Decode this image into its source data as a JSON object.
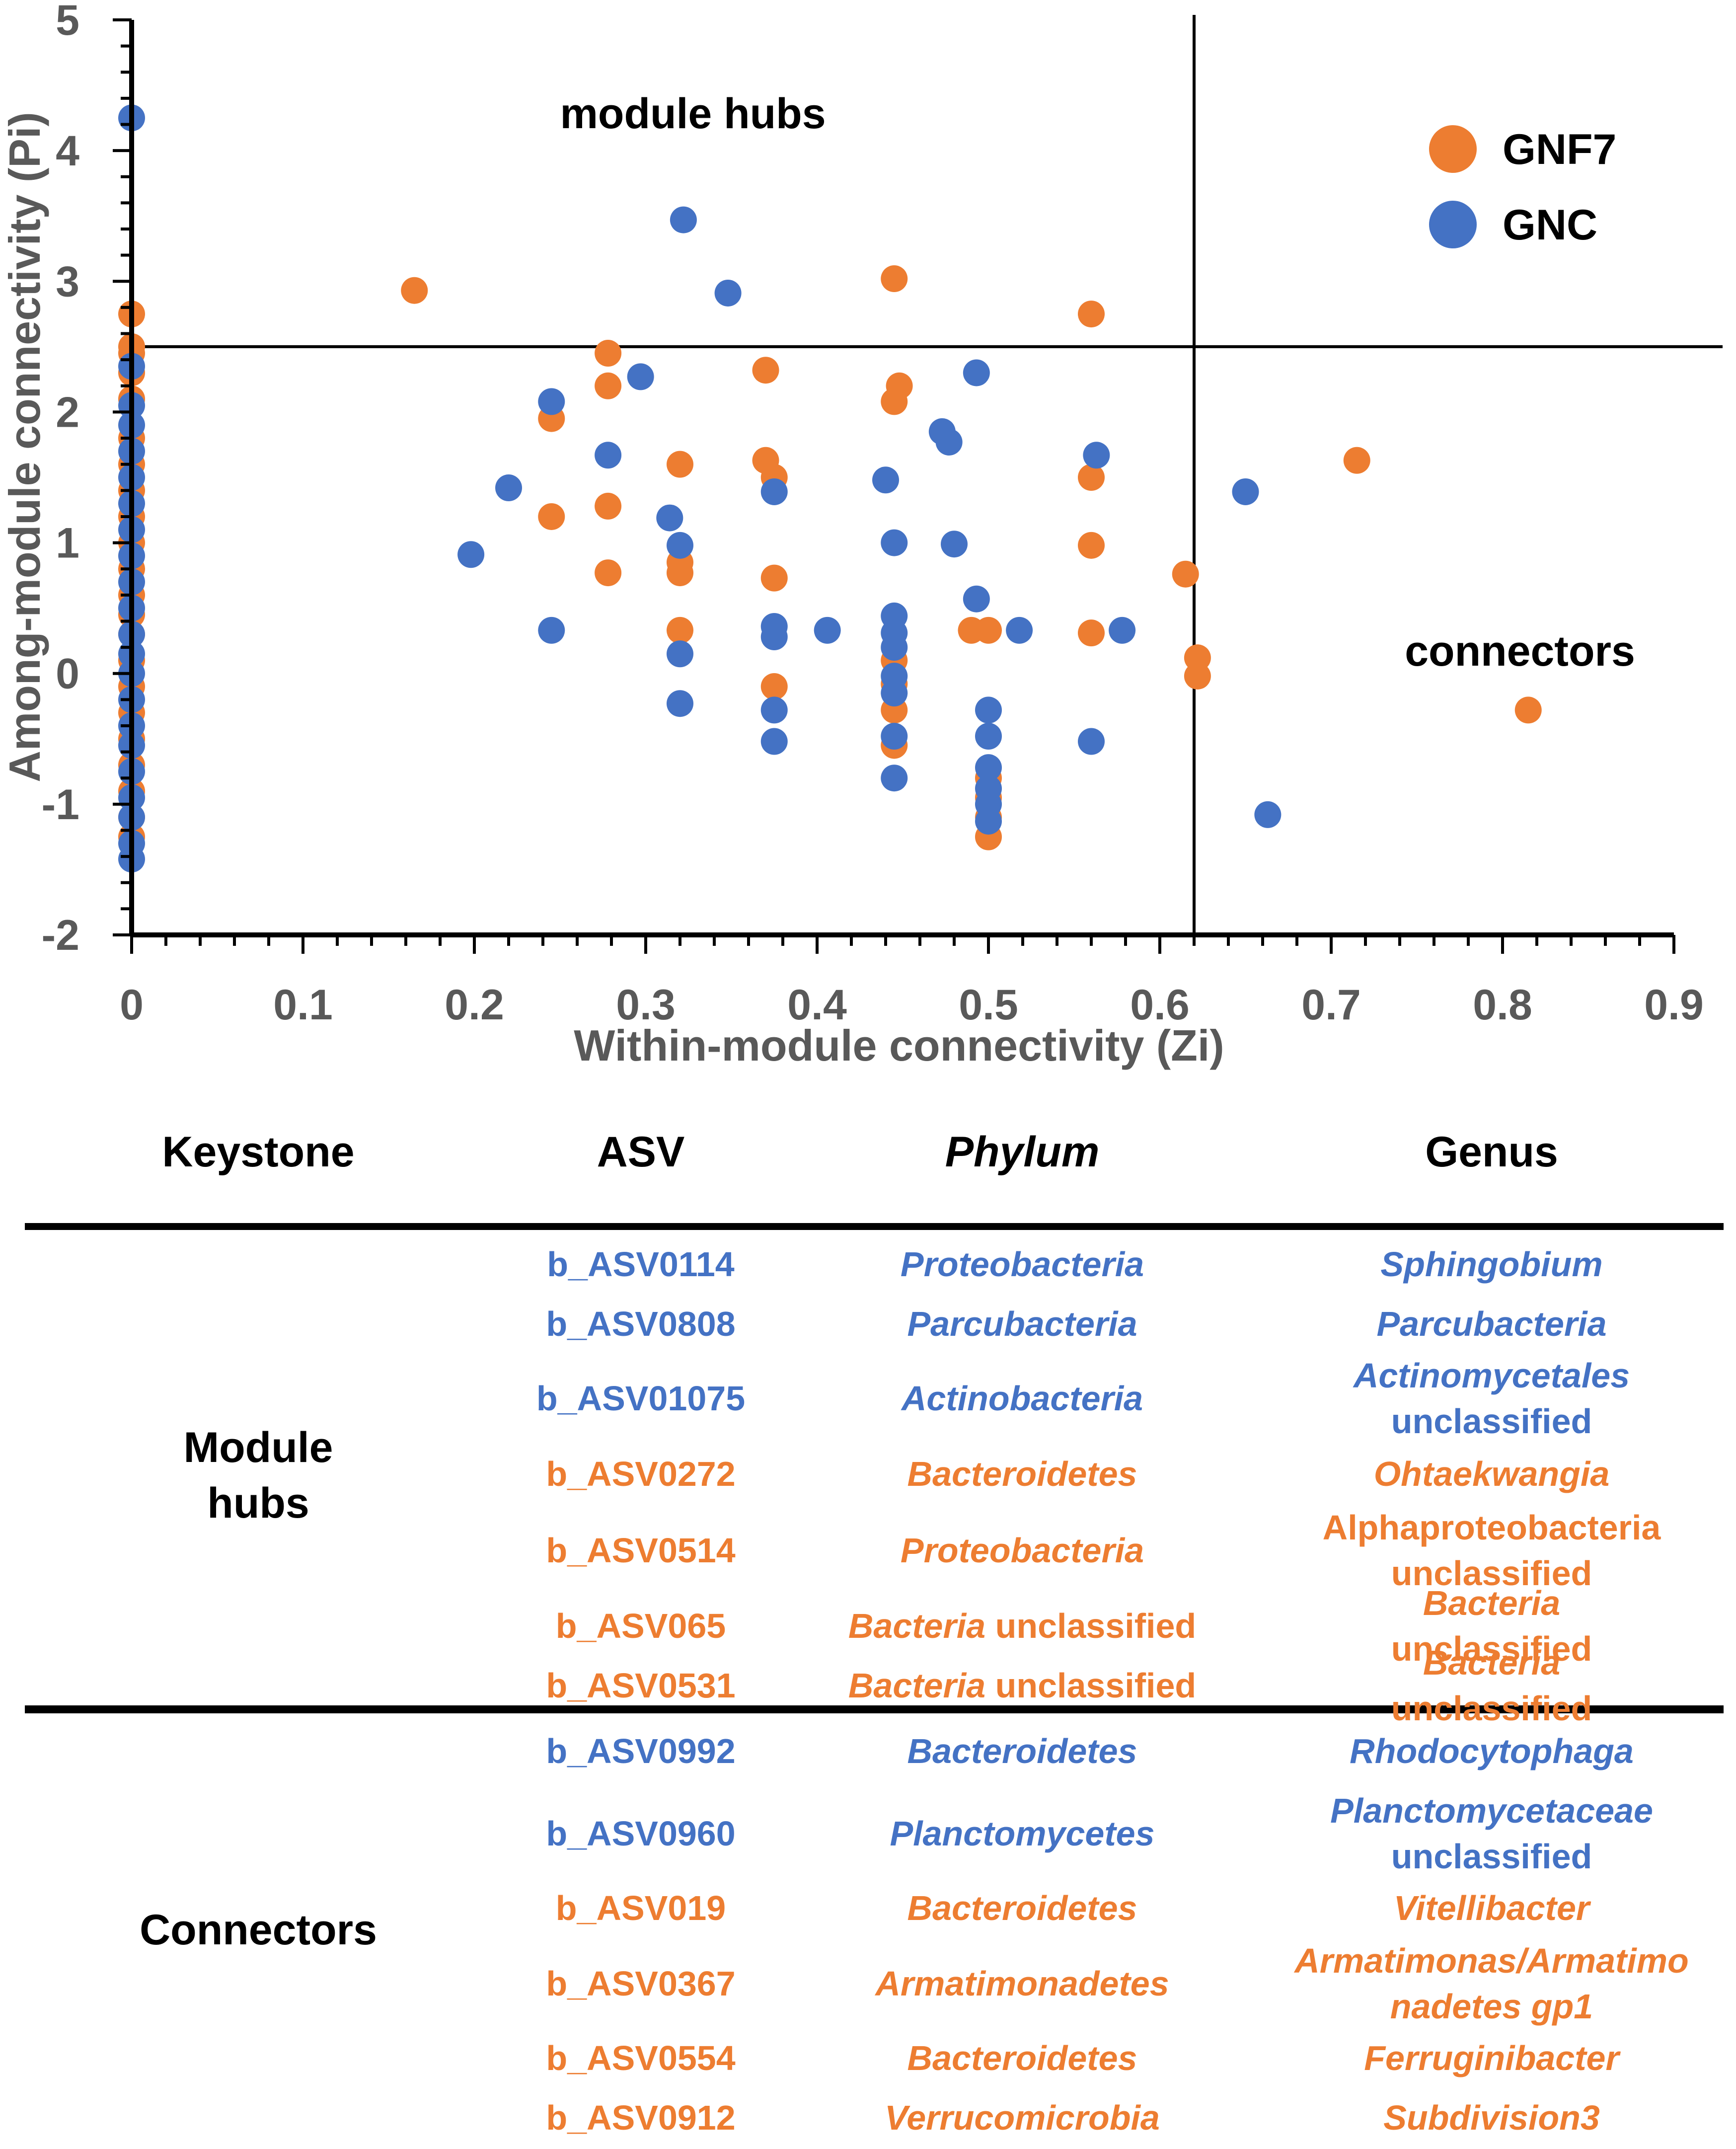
{
  "colors": {
    "GNF7": "#ED7D31",
    "GNC": "#4472C4",
    "axis": "#000000",
    "tick_label": "#595959"
  },
  "chart_data": {
    "type": "scatter",
    "xlabel": "Within-module connectivity (Zi)",
    "ylabel": "Among-module connectivity (Pi)",
    "xlim": [
      0,
      0.9
    ],
    "ylim": [
      -2,
      5
    ],
    "x_ticks": [
      "0",
      "0.1",
      "0.2",
      "0.3",
      "0.4",
      "0.5",
      "0.6",
      "0.7",
      "0.8",
      "0.9"
    ],
    "y_ticks": [
      "-2",
      "-1",
      "0",
      "1",
      "2",
      "3",
      "4",
      "5"
    ],
    "thresholds": {
      "zi": 0.62,
      "pi": 2.5
    },
    "annotations": [
      "module hubs",
      "connectors"
    ],
    "legend": {
      "position": "top-right",
      "entries": [
        "GNF7",
        "GNC"
      ]
    },
    "series": [
      {
        "name": "GNF7",
        "color": "#ED7D31",
        "points": [
          [
            0,
            2.75
          ],
          [
            0,
            2.5
          ],
          [
            0,
            2.45
          ],
          [
            0,
            2.3
          ],
          [
            0,
            2.1
          ],
          [
            0,
            1.8
          ],
          [
            0,
            1.6
          ],
          [
            0,
            1.4
          ],
          [
            0,
            1.2
          ],
          [
            0,
            1.0
          ],
          [
            0,
            0.8
          ],
          [
            0,
            0.6
          ],
          [
            0,
            0.45
          ],
          [
            0,
            0.3
          ],
          [
            0,
            0.1
          ],
          [
            0,
            -0.1
          ],
          [
            0,
            -0.3
          ],
          [
            0,
            -0.5
          ],
          [
            0,
            -0.7
          ],
          [
            0,
            -0.9
          ],
          [
            0,
            -1.1
          ],
          [
            0,
            -1.25
          ],
          [
            0.165,
            2.93
          ],
          [
            0.245,
            1.95
          ],
          [
            0.245,
            1.2
          ],
          [
            0.278,
            2.45
          ],
          [
            0.278,
            2.2
          ],
          [
            0.278,
            1.28
          ],
          [
            0.278,
            0.77
          ],
          [
            0.32,
            1.6
          ],
          [
            0.32,
            0.85
          ],
          [
            0.32,
            0.77
          ],
          [
            0.32,
            0.33
          ],
          [
            0.37,
            2.32
          ],
          [
            0.37,
            1.63
          ],
          [
            0.375,
            1.5
          ],
          [
            0.375,
            0.73
          ],
          [
            0.375,
            -0.1
          ],
          [
            0.445,
            3.02
          ],
          [
            0.448,
            2.2
          ],
          [
            0.445,
            2.08
          ],
          [
            0.445,
            0.1
          ],
          [
            0.445,
            -0.08
          ],
          [
            0.445,
            -0.28
          ],
          [
            0.445,
            -0.55
          ],
          [
            0.49,
            0.33
          ],
          [
            0.5,
            0.33
          ],
          [
            0.5,
            -0.8
          ],
          [
            0.5,
            -0.95
          ],
          [
            0.5,
            -1.1
          ],
          [
            0.5,
            -1.25
          ],
          [
            0.56,
            2.75
          ],
          [
            0.56,
            1.5
          ],
          [
            0.56,
            0.98
          ],
          [
            0.56,
            0.31
          ],
          [
            0.615,
            0.76
          ],
          [
            0.622,
            0.12
          ],
          [
            0.622,
            -0.02
          ],
          [
            0.715,
            1.63
          ],
          [
            0.815,
            -0.28
          ]
        ]
      },
      {
        "name": "GNC",
        "color": "#4472C4",
        "points": [
          [
            0,
            4.25
          ],
          [
            0,
            2.35
          ],
          [
            0,
            2.05
          ],
          [
            0,
            1.9
          ],
          [
            0,
            1.7
          ],
          [
            0,
            1.5
          ],
          [
            0,
            1.3
          ],
          [
            0,
            1.1
          ],
          [
            0,
            0.9
          ],
          [
            0,
            0.7
          ],
          [
            0,
            0.5
          ],
          [
            0,
            0.3
          ],
          [
            0,
            0.15
          ],
          [
            0,
            0.0
          ],
          [
            0,
            -0.2
          ],
          [
            0,
            -0.4
          ],
          [
            0,
            -0.55
          ],
          [
            0,
            -0.75
          ],
          [
            0,
            -0.95
          ],
          [
            0,
            -1.1
          ],
          [
            0,
            -1.3
          ],
          [
            0,
            -1.42
          ],
          [
            0.198,
            0.91
          ],
          [
            0.22,
            1.42
          ],
          [
            0.245,
            2.08
          ],
          [
            0.245,
            0.33
          ],
          [
            0.278,
            1.67
          ],
          [
            0.297,
            2.27
          ],
          [
            0.314,
            1.19
          ],
          [
            0.32,
            0.98
          ],
          [
            0.32,
            0.15
          ],
          [
            0.32,
            -0.23
          ],
          [
            0.322,
            3.47
          ],
          [
            0.348,
            2.91
          ],
          [
            0.375,
            1.39
          ],
          [
            0.375,
            0.36
          ],
          [
            0.375,
            0.28
          ],
          [
            0.375,
            -0.28
          ],
          [
            0.375,
            -0.52
          ],
          [
            0.406,
            0.33
          ],
          [
            0.44,
            1.48
          ],
          [
            0.445,
            1.0
          ],
          [
            0.445,
            0.44
          ],
          [
            0.445,
            0.31
          ],
          [
            0.445,
            0.2
          ],
          [
            0.445,
            -0.02
          ],
          [
            0.445,
            -0.15
          ],
          [
            0.445,
            -0.48
          ],
          [
            0.445,
            -0.8
          ],
          [
            0.473,
            1.85
          ],
          [
            0.477,
            1.77
          ],
          [
            0.48,
            0.99
          ],
          [
            0.493,
            2.3
          ],
          [
            0.493,
            0.57
          ],
          [
            0.5,
            -0.28
          ],
          [
            0.5,
            -0.48
          ],
          [
            0.5,
            -0.72
          ],
          [
            0.5,
            -0.88
          ],
          [
            0.5,
            -1.0
          ],
          [
            0.5,
            -1.13
          ],
          [
            0.518,
            0.33
          ],
          [
            0.56,
            -0.52
          ],
          [
            0.563,
            1.67
          ],
          [
            0.578,
            0.33
          ],
          [
            0.65,
            1.39
          ],
          [
            0.663,
            -1.08
          ]
        ]
      }
    ]
  },
  "table": {
    "headers": [
      "Keystone",
      "ASV",
      "Phylum",
      "Genus"
    ],
    "groups": [
      "Module\nhubs",
      "Connectors"
    ],
    "rows": [
      {
        "color": "#4472C4",
        "asv": "b_ASV0114",
        "phylum": "Proteobacteria",
        "phylum_suffix": "",
        "genus_lines": [
          "Sphingobium"
        ],
        "genus_suffix": ""
      },
      {
        "color": "#4472C4",
        "asv": "b_ASV0808",
        "phylum": "Parcubacteria",
        "phylum_suffix": "",
        "genus_lines": [
          "Parcubacteria"
        ],
        "genus_suffix": ""
      },
      {
        "color": "#4472C4",
        "asv": "b_ASV01075",
        "phylum": "Actinobacteria",
        "phylum_suffix": "",
        "genus_lines": [
          "Actinomycetales"
        ],
        "genus_suffix": "unclassified"
      },
      {
        "color": "#ED7D31",
        "asv": "b_ASV0272",
        "phylum": "Bacteroidetes",
        "phylum_suffix": "",
        "genus_lines": [
          "Ohtaekwangia"
        ],
        "genus_suffix": ""
      },
      {
        "color": "#ED7D31",
        "asv": "b_ASV0514",
        "phylum": "Proteobacteria",
        "phylum_suffix": "",
        "genus_lines": [],
        "genus_suffix": "Alphaproteobacteria\nunclassified"
      },
      {
        "color": "#ED7D31",
        "asv": "b_ASV065",
        "phylum": "Bacteria",
        "phylum_suffix": " unclassified",
        "genus_lines": [
          "Bacteria"
        ],
        "genus_suffix": " unclassified"
      },
      {
        "color": "#ED7D31",
        "asv": "b_ASV0531",
        "phylum": "Bacteria",
        "phylum_suffix": " unclassified",
        "genus_lines": [
          "Bacteria"
        ],
        "genus_suffix": " unclassified"
      },
      {
        "color": "#4472C4",
        "asv": "b_ASV0992",
        "phylum": "Bacteroidetes",
        "phylum_suffix": "",
        "genus_lines": [
          "Rhodocytophaga"
        ],
        "genus_suffix": ""
      },
      {
        "color": "#4472C4",
        "asv": "b_ASV0960",
        "phylum": "Planctomycetes",
        "phylum_suffix": "",
        "genus_lines": [
          "Planctomycetaceae"
        ],
        "genus_suffix": "unclassified"
      },
      {
        "color": "#ED7D31",
        "asv": "b_ASV019",
        "phylum": "Bacteroidetes",
        "phylum_suffix": "",
        "genus_lines": [
          "Vitellibacter"
        ],
        "genus_suffix": ""
      },
      {
        "color": "#ED7D31",
        "asv": "b_ASV0367",
        "phylum": "Armatimonadetes",
        "phylum_suffix": "",
        "genus_lines": [
          "Armatimonas/Armatimo",
          "nadetes gp1"
        ],
        "genus_suffix": ""
      },
      {
        "color": "#ED7D31",
        "asv": "b_ASV0554",
        "phylum": "Bacteroidetes",
        "phylum_suffix": "",
        "genus_lines": [
          "Ferruginibacter"
        ],
        "genus_suffix": ""
      },
      {
        "color": "#ED7D31",
        "asv": "b_ASV0912",
        "phylum": "Verrucomicrobia",
        "phylum_suffix": "",
        "genus_lines": [
          "Subdivision3"
        ],
        "genus_suffix": ""
      }
    ]
  }
}
